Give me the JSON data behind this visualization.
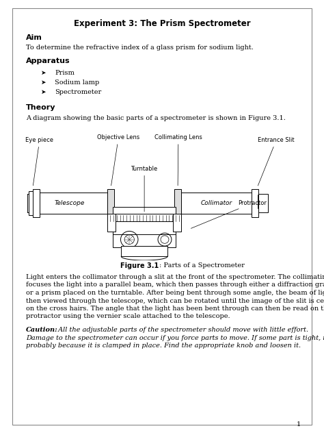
{
  "title": "Experiment 3: The Prism Spectrometer",
  "aim_heading": "Aim",
  "aim_text": "To determine the refractive index of a glass prism for sodium light.",
  "apparatus_heading": "Apparatus",
  "apparatus_items": [
    "Prism",
    "Sodium lamp",
    "Spectrometer"
  ],
  "theory_heading": "Theory",
  "theory_text": "A diagram showing the basic parts of a spectrometer is shown in Figure 3.1.",
  "figure_caption_bold": "Figure 3.1",
  "figure_caption_normal": ": Parts of a Spectrometer",
  "body_text": "Light enters the collimator through a slit at the front of the spectrometer. The collimating lens\nfocuses the light into a parallel beam, which then passes through either a diffraction grating\nor a prism placed on the turntable. After being bent through some angle, the beam of light is\nthen viewed through the telescope, which can be rotated until the image of the slit is centered\non the cross hairs. The angle that the light has been bent through can then be read on the\nprotractor using the vernier scale attached to the telescope.",
  "caution_bold": "Caution:",
  "caution_italic": " All the adjustable parts of the spectrometer should move with little effort.\nDamage to the spectrometer can occur if you force parts to move. If some part is tight, it is\nprobably because it is clamped in place. Find the appropriate knob and loosen it.",
  "page_number": "1",
  "bg_color": "#ffffff",
  "text_color": "#000000",
  "border_color": "#888888",
  "font_size_title": 8.5,
  "font_size_body": 7.0,
  "font_size_heading": 8.0,
  "font_size_ann": 6.0
}
